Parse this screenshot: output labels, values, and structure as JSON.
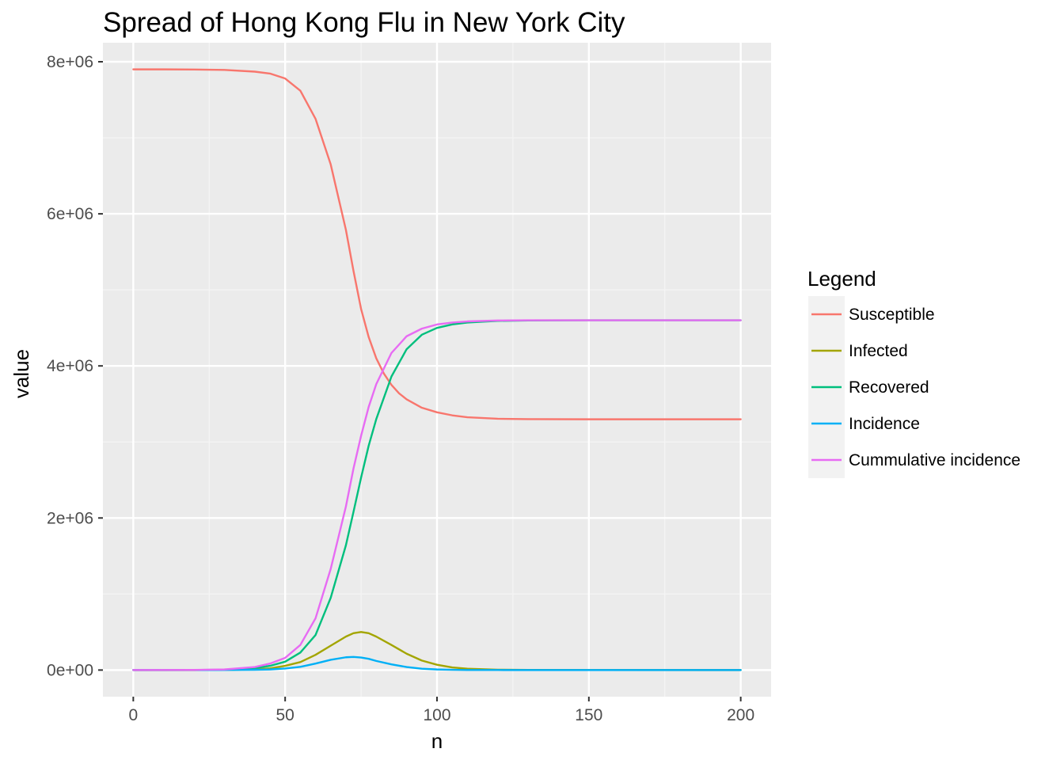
{
  "chart_data": {
    "type": "line",
    "title": "Spread of Hong Kong Flu in New York City",
    "xlabel": "n",
    "ylabel": "value",
    "xlim": [
      -10,
      210
    ],
    "ylim": [
      -350000,
      8250000
    ],
    "x_ticks": [
      0,
      50,
      100,
      150,
      200
    ],
    "x_tick_labels": [
      "0",
      "50",
      "100",
      "150",
      "200"
    ],
    "y_ticks": [
      0,
      2000000,
      4000000,
      6000000,
      8000000
    ],
    "y_tick_labels": [
      "0e+00",
      "2e+06",
      "4e+06",
      "6e+06",
      "8e+06"
    ],
    "grid": true,
    "legend": {
      "title": "Legend",
      "position": "right"
    },
    "series": [
      {
        "name": "Susceptible",
        "color": "#f8766d",
        "x": [
          0,
          10,
          20,
          30,
          40,
          45,
          50,
          55,
          60,
          65,
          70,
          72.5,
          75,
          77.5,
          80,
          82.5,
          85,
          87.5,
          90,
          95,
          100,
          105,
          110,
          120,
          130,
          150,
          200
        ],
        "y": [
          7900000,
          7900000,
          7898000,
          7893000,
          7870000,
          7845000,
          7780000,
          7620000,
          7250000,
          6650000,
          5790000,
          5250000,
          4750000,
          4380000,
          4100000,
          3900000,
          3750000,
          3640000,
          3560000,
          3450000,
          3390000,
          3350000,
          3325000,
          3305000,
          3300000,
          3298000,
          3298000
        ]
      },
      {
        "name": "Infected",
        "color": "#a3a500",
        "x": [
          0,
          20,
          30,
          40,
          45,
          50,
          55,
          60,
          65,
          70,
          72.5,
          75,
          77.5,
          80,
          85,
          90,
          95,
          100,
          105,
          110,
          120,
          130,
          150,
          200
        ],
        "y": [
          1,
          100,
          1000,
          10000,
          22000,
          55000,
          105000,
          200000,
          320000,
          440000,
          485000,
          500000,
          485000,
          440000,
          330000,
          215000,
          125000,
          70000,
          35000,
          18000,
          5000,
          1500,
          200,
          0
        ]
      },
      {
        "name": "Recovered",
        "color": "#00bf7d",
        "x": [
          0,
          20,
          30,
          40,
          45,
          50,
          55,
          60,
          65,
          70,
          72.5,
          75,
          77.5,
          80,
          85,
          90,
          95,
          100,
          105,
          110,
          120,
          130,
          150,
          200
        ],
        "y": [
          0,
          1000,
          5000,
          25000,
          55000,
          110000,
          230000,
          460000,
          950000,
          1640000,
          2080000,
          2530000,
          2950000,
          3300000,
          3860000,
          4220000,
          4410000,
          4500000,
          4545000,
          4570000,
          4592000,
          4598000,
          4600000,
          4600000
        ]
      },
      {
        "name": "Incidence",
        "color": "#00b0f6",
        "x": [
          0,
          20,
          30,
          40,
          45,
          50,
          55,
          60,
          65,
          70,
          72.5,
          75,
          77.5,
          80,
          85,
          90,
          95,
          100,
          105,
          110,
          120,
          130,
          150,
          200
        ],
        "y": [
          0,
          50,
          400,
          3500,
          8000,
          20000,
          42000,
          85000,
          135000,
          168000,
          172000,
          165000,
          148000,
          120000,
          75000,
          40000,
          18000,
          8000,
          3000,
          1200,
          200,
          0,
          0,
          0
        ]
      },
      {
        "name": "Cummulative incidence",
        "color": "#e76bf3",
        "x": [
          0,
          20,
          30,
          40,
          45,
          50,
          55,
          60,
          65,
          70,
          72.5,
          75,
          77.5,
          80,
          85,
          90,
          95,
          100,
          105,
          110,
          120,
          130,
          150,
          200
        ],
        "y": [
          0,
          1500,
          8000,
          40000,
          85000,
          160000,
          330000,
          680000,
          1330000,
          2150000,
          2650000,
          3080000,
          3460000,
          3760000,
          4170000,
          4390000,
          4490000,
          4545000,
          4570000,
          4585000,
          4597000,
          4600000,
          4600000,
          4600000
        ]
      }
    ]
  }
}
